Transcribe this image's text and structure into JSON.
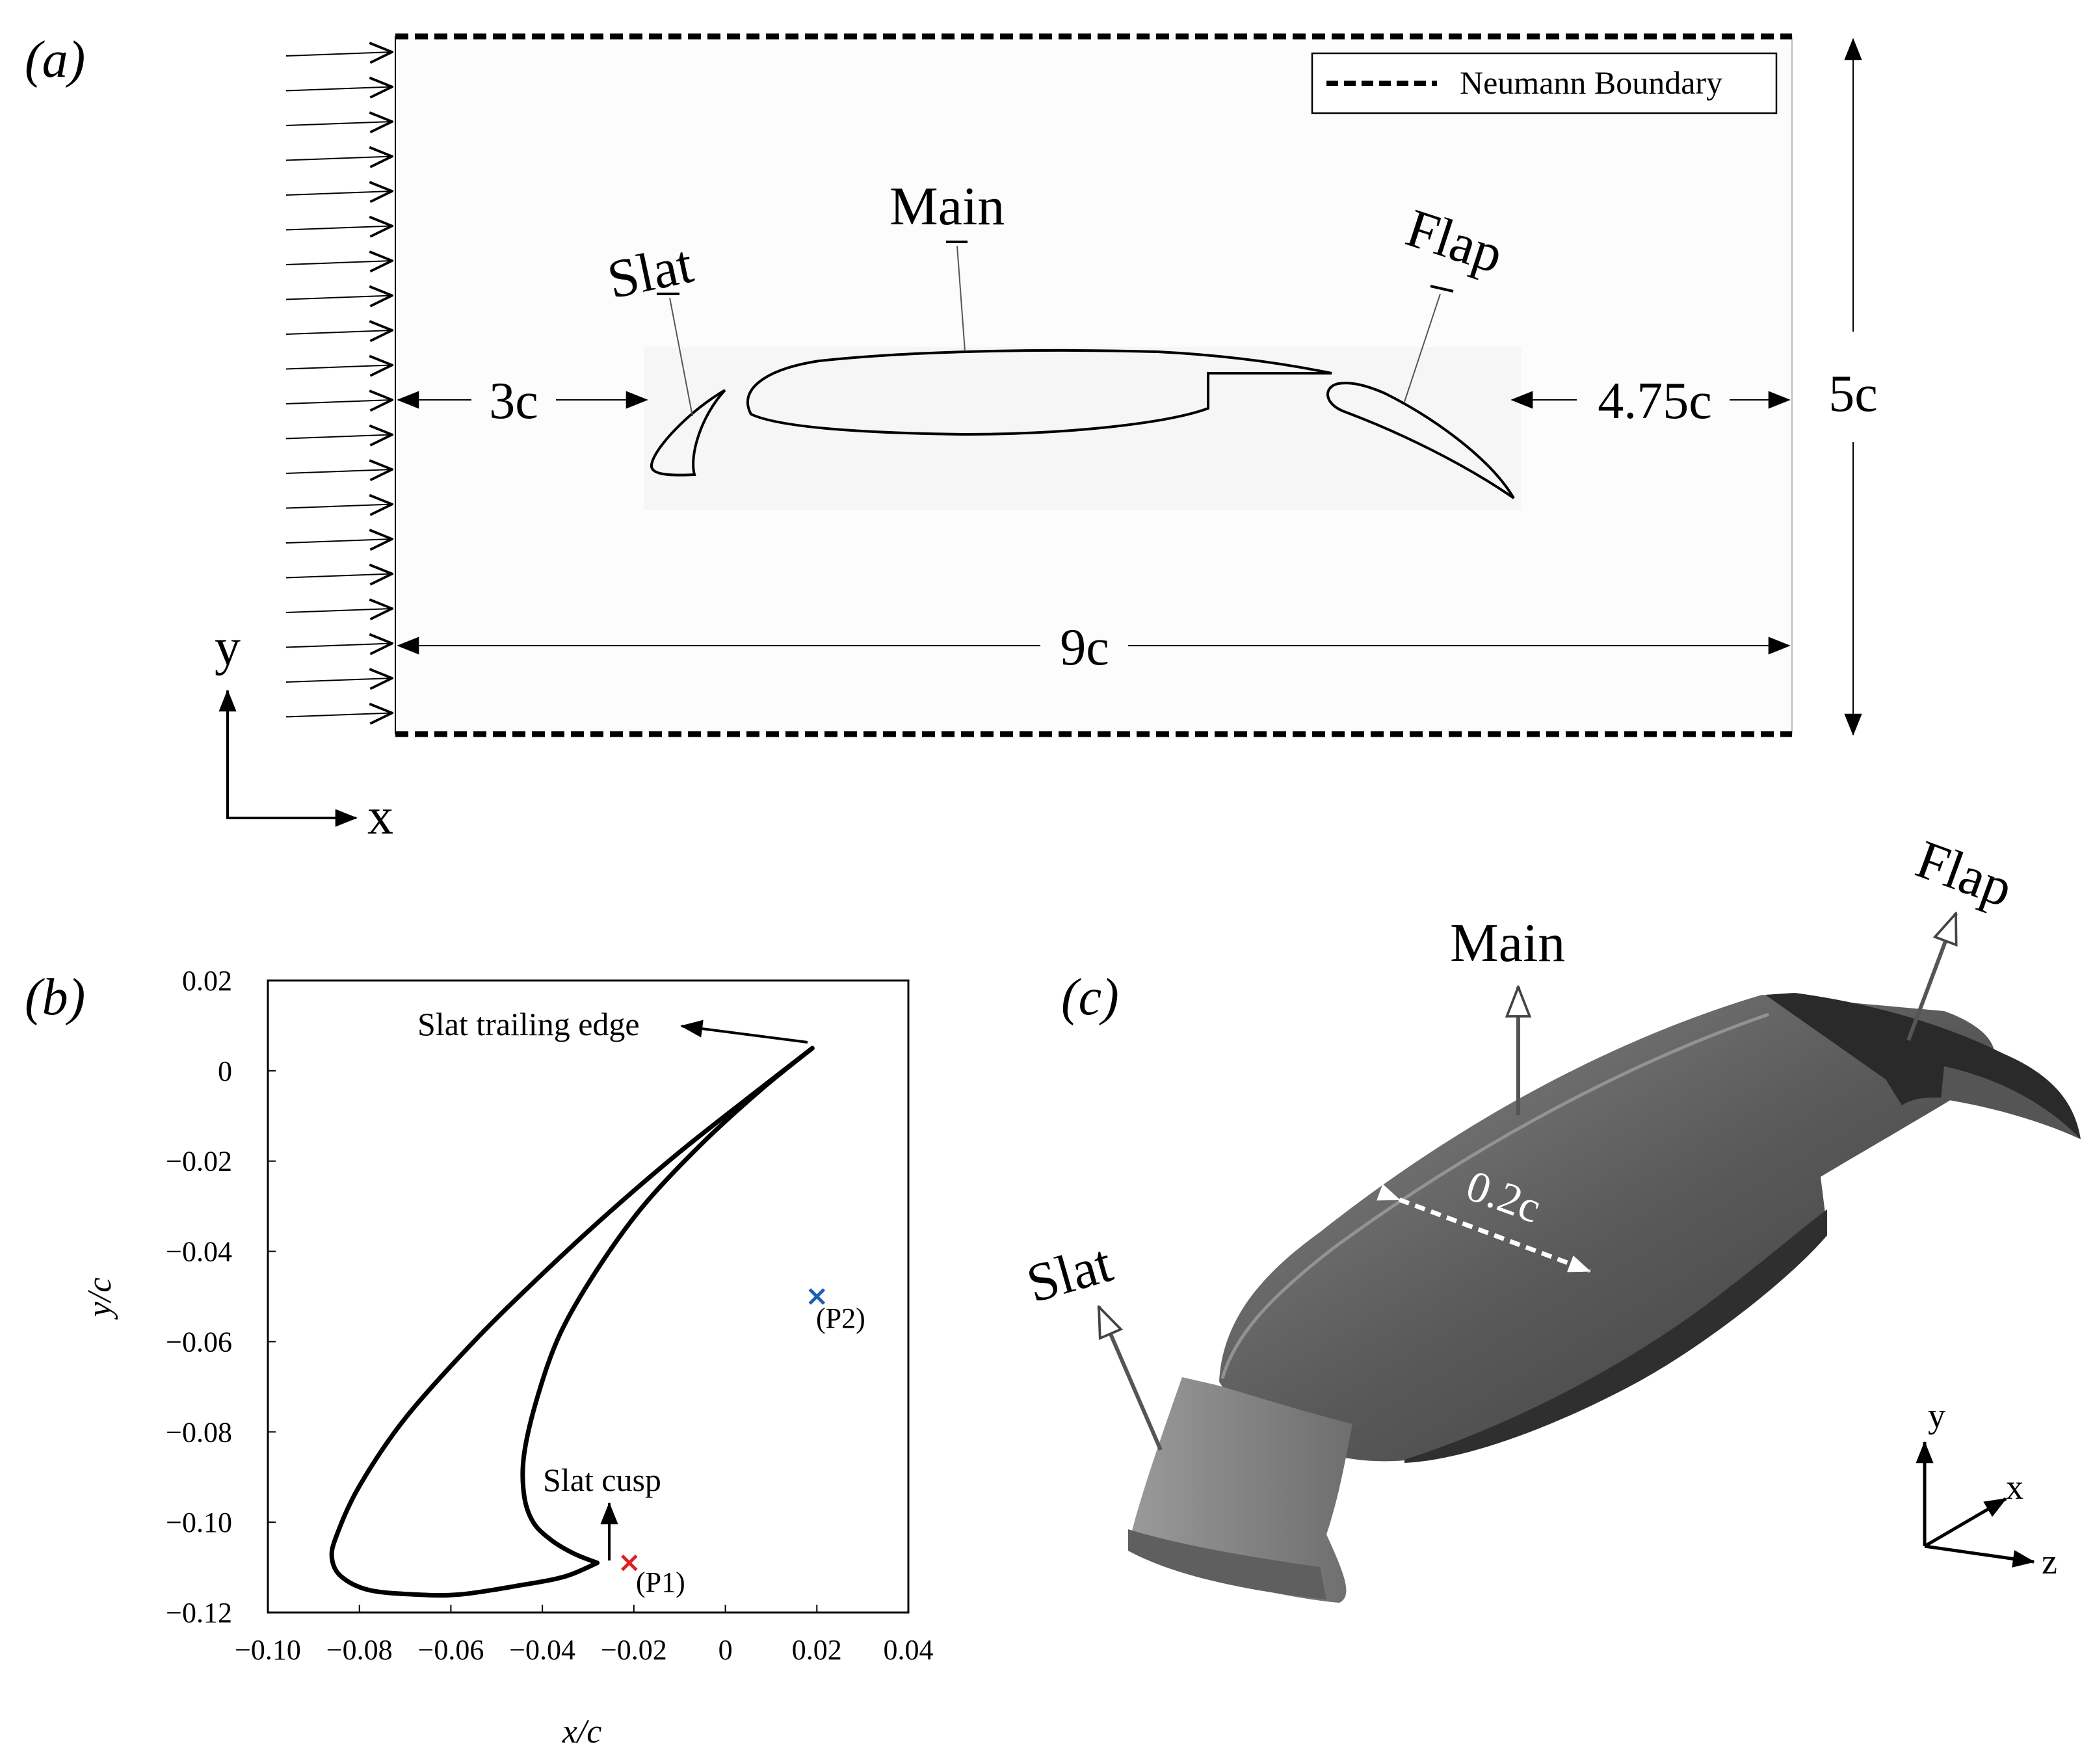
{
  "panel_a": {
    "label": "(a)",
    "legend": {
      "text": "Neumann Boundary"
    },
    "labels": {
      "slat": "Slat",
      "main": "Main",
      "flap": "Flap"
    },
    "dims": {
      "upstream": "3c",
      "downstream": "4.75c",
      "height": "5c",
      "length": "9c"
    },
    "axes": {
      "x": "x",
      "y": "y"
    }
  },
  "panel_b": {
    "label": "(b)",
    "annotations": {
      "trailing_edge": "Slat trailing edge",
      "cusp": "Slat cusp",
      "p1": "(P1)",
      "p2": "(P2)"
    }
  },
  "panel_c": {
    "label": "(c)",
    "labels": {
      "slat": "Slat",
      "main": "Main",
      "flap": "Flap"
    },
    "span": "0.2c",
    "axes": {
      "x": "x",
      "y": "y",
      "z": "z"
    }
  },
  "colors": {
    "p1_marker": "#e02020",
    "p2_marker": "#1a5fb4"
  },
  "chart_data": {
    "type": "line",
    "xlabel": "x/c",
    "ylabel": "y/c",
    "xlim": [
      -0.1,
      0.04
    ],
    "ylim": [
      -0.12,
      0.02
    ],
    "xticks": [
      -0.1,
      -0.08,
      -0.06,
      -0.04,
      -0.02,
      0,
      0.02,
      0.04
    ],
    "xtick_labels": [
      "−0.10",
      "−0.08",
      "−0.06",
      "−0.04",
      "−0.02",
      "0",
      "0.02",
      "0.04"
    ],
    "yticks": [
      0.02,
      0,
      -0.02,
      -0.04,
      -0.06,
      -0.08,
      -0.1,
      -0.12
    ],
    "ytick_labels": [
      "0.02",
      "0",
      "−0.02",
      "−0.04",
      "−0.06",
      "−0.08",
      "−0.10",
      "−0.12"
    ],
    "series": [
      {
        "x": [
          0.019,
          0.005,
          -0.01,
          -0.025,
          -0.04,
          -0.055,
          -0.07,
          -0.08,
          -0.085,
          -0.086,
          -0.084,
          -0.078,
          -0.068,
          -0.058,
          -0.045,
          -0.035,
          -0.028
        ],
        "y": [
          0.005,
          -0.006,
          -0.018,
          -0.031,
          -0.045,
          -0.06,
          -0.077,
          -0.092,
          -0.103,
          -0.108,
          -0.112,
          -0.115,
          -0.116,
          -0.116,
          -0.114,
          -0.112,
          -0.109
        ]
      },
      {
        "x": [
          0.019,
          0.008,
          -0.005,
          -0.018,
          -0.028,
          -0.036,
          -0.041,
          -0.044,
          -0.044,
          -0.042,
          -0.038,
          -0.033,
          -0.028
        ],
        "y": [
          0.005,
          -0.004,
          -0.016,
          -0.03,
          -0.044,
          -0.058,
          -0.072,
          -0.085,
          -0.094,
          -0.1,
          -0.104,
          -0.107,
          -0.109
        ]
      }
    ],
    "points": [
      {
        "x": -0.021,
        "y": -0.109
      },
      {
        "x": 0.02,
        "y": -0.05
      }
    ]
  }
}
